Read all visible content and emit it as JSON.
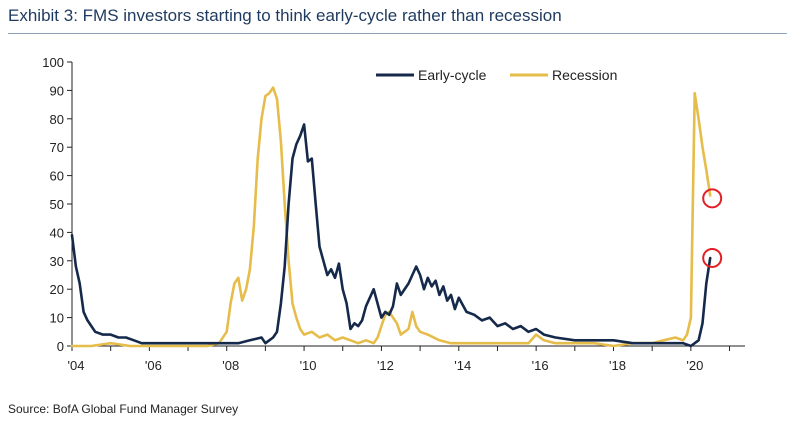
{
  "title": "Exhibit 3: FMS investors starting to think early-cycle rather than recession",
  "source": "Source: BofA Global Fund Manager Survey",
  "colors": {
    "early_cycle": "#15294a",
    "recession": "#e6bd4b",
    "highlight": "#e31f26"
  },
  "chart_data": {
    "type": "line",
    "xlabel": "",
    "ylabel": "",
    "ylim": [
      0,
      100
    ],
    "xlim": [
      2004.0,
      2021.4
    ],
    "yticks": [
      0,
      10,
      20,
      30,
      40,
      50,
      60,
      70,
      80,
      90,
      100
    ],
    "xticks": [
      {
        "value": 2004,
        "label": "'04"
      },
      {
        "value": 2006,
        "label": "'06"
      },
      {
        "value": 2008,
        "label": "'08"
      },
      {
        "value": 2010,
        "label": "'10"
      },
      {
        "value": 2012,
        "label": "'12"
      },
      {
        "value": 2014,
        "label": "'14"
      },
      {
        "value": 2016,
        "label": "'16"
      },
      {
        "value": 2018,
        "label": "'18"
      },
      {
        "value": 2020,
        "label": "'20"
      }
    ],
    "grid": false,
    "legend": "top-center",
    "series": [
      {
        "name": "Early-cycle",
        "x": [
          2004.0,
          2004.1,
          2004.2,
          2004.3,
          2004.4,
          2004.6,
          2004.8,
          2005.0,
          2005.2,
          2005.4,
          2005.6,
          2005.8,
          2006.0,
          2006.5,
          2007.0,
          2007.5,
          2008.0,
          2008.3,
          2008.6,
          2008.9,
          2009.0,
          2009.1,
          2009.2,
          2009.3,
          2009.4,
          2009.5,
          2009.6,
          2009.7,
          2009.8,
          2009.9,
          2010.0,
          2010.1,
          2010.2,
          2010.3,
          2010.4,
          2010.5,
          2010.6,
          2010.7,
          2010.8,
          2010.9,
          2011.0,
          2011.1,
          2011.2,
          2011.3,
          2011.4,
          2011.5,
          2011.6,
          2011.8,
          2012.0,
          2012.1,
          2012.2,
          2012.3,
          2012.4,
          2012.5,
          2012.7,
          2012.9,
          2013.0,
          2013.1,
          2013.2,
          2013.3,
          2013.4,
          2013.5,
          2013.6,
          2013.7,
          2013.8,
          2013.9,
          2014.0,
          2014.2,
          2014.4,
          2014.6,
          2014.8,
          2015.0,
          2015.2,
          2015.4,
          2015.6,
          2015.8,
          2016.0,
          2016.2,
          2016.5,
          2017.0,
          2017.5,
          2018.0,
          2018.5,
          2019.0,
          2019.5,
          2019.8,
          2020.0,
          2020.1,
          2020.2,
          2020.3,
          2020.4,
          2020.5
        ],
        "values": [
          39,
          28,
          22,
          12,
          9,
          5,
          4,
          4,
          3,
          3,
          2,
          1,
          1,
          1,
          1,
          1,
          1,
          1,
          2,
          3,
          1,
          2,
          3,
          5,
          15,
          28,
          50,
          66,
          71,
          74,
          78,
          65,
          66,
          50,
          35,
          30,
          25,
          27,
          24,
          29,
          20,
          15,
          6,
          8,
          7,
          9,
          14,
          20,
          10,
          12,
          11,
          14,
          22,
          18,
          22,
          28,
          25,
          20,
          24,
          21,
          23,
          18,
          21,
          16,
          18,
          13,
          17,
          12,
          11,
          9,
          10,
          7,
          8,
          6,
          7,
          5,
          6,
          4,
          3,
          2,
          2,
          2,
          1,
          1,
          1,
          1,
          0,
          1,
          2,
          8,
          22,
          31
        ]
      },
      {
        "name": "Recession",
        "x": [
          2004.0,
          2004.5,
          2005.0,
          2005.5,
          2006.0,
          2006.5,
          2007.0,
          2007.5,
          2007.8,
          2008.0,
          2008.1,
          2008.2,
          2008.3,
          2008.4,
          2008.5,
          2008.6,
          2008.7,
          2008.8,
          2008.9,
          2009.0,
          2009.1,
          2009.2,
          2009.3,
          2009.4,
          2009.5,
          2009.6,
          2009.7,
          2009.8,
          2009.9,
          2010.0,
          2010.2,
          2010.4,
          2010.6,
          2010.8,
          2011.0,
          2011.2,
          2011.4,
          2011.6,
          2011.8,
          2011.9,
          2012.0,
          2012.1,
          2012.2,
          2012.3,
          2012.4,
          2012.5,
          2012.6,
          2012.7,
          2012.8,
          2012.9,
          2013.0,
          2013.2,
          2013.5,
          2013.8,
          2014.0,
          2014.5,
          2015.0,
          2015.5,
          2015.8,
          2016.0,
          2016.2,
          2016.5,
          2017.0,
          2017.5,
          2018.0,
          2018.5,
          2019.0,
          2019.3,
          2019.6,
          2019.8,
          2019.9,
          2020.0,
          2020.1,
          2020.2,
          2020.3,
          2020.4,
          2020.5
        ],
        "values": [
          0,
          0,
          1,
          0,
          0,
          0,
          0,
          0,
          1,
          5,
          15,
          22,
          24,
          16,
          20,
          27,
          42,
          66,
          80,
          88,
          89,
          91,
          87,
          72,
          50,
          30,
          15,
          10,
          6,
          4,
          5,
          3,
          4,
          2,
          3,
          2,
          1,
          2,
          1,
          3,
          7,
          11,
          12,
          10,
          8,
          4,
          5,
          6,
          12,
          7,
          5,
          4,
          2,
          1,
          1,
          1,
          1,
          1,
          1,
          4,
          2,
          1,
          1,
          1,
          0,
          1,
          1,
          2,
          3,
          2,
          4,
          10,
          89,
          80,
          70,
          62,
          53
        ]
      }
    ],
    "annotations": [
      {
        "type": "circle",
        "series": "Recession",
        "x": 2020.5,
        "y": 52
      },
      {
        "type": "circle",
        "series": "Early-cycle",
        "x": 2020.5,
        "y": 31
      }
    ]
  }
}
